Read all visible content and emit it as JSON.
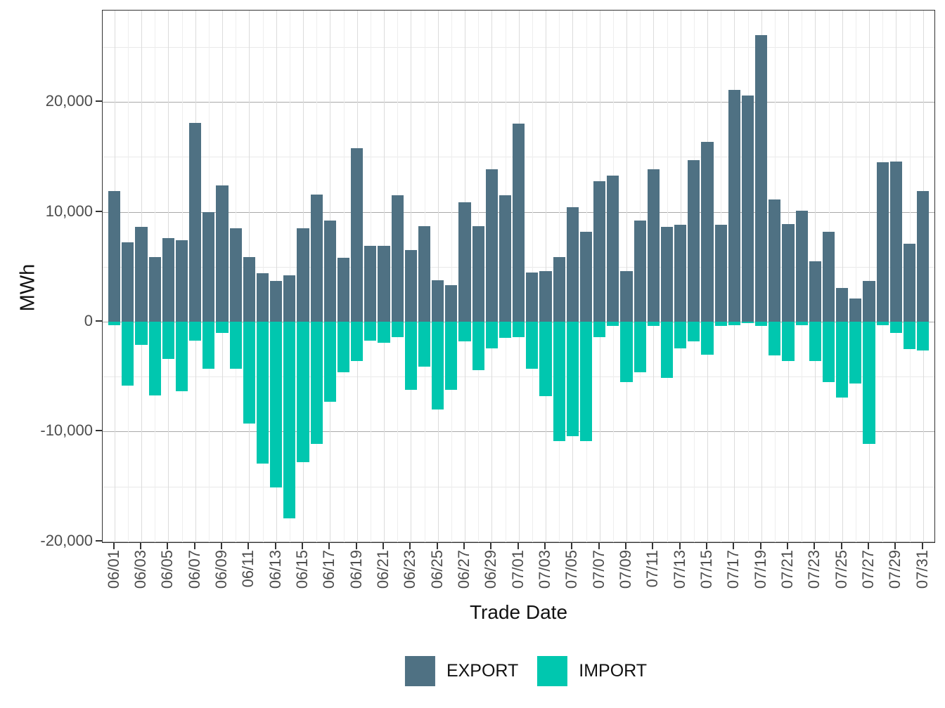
{
  "figure": {
    "y_axis": {
      "title": "MWh",
      "tick_labels": [
        "20,000",
        "10,000",
        "0",
        "-10,000",
        "-20,000"
      ],
      "tick_values": [
        20000,
        10000,
        0,
        -10000,
        -20000
      ],
      "minor_grid_values": [
        25000,
        15000,
        5000,
        -5000,
        -15000
      ]
    },
    "x_axis": {
      "title": "Trade Date",
      "tick_labels": [
        "06/01",
        "06/03",
        "06/05",
        "06/07",
        "06/09",
        "06/11",
        "06/13",
        "06/15",
        "06/17",
        "06/19",
        "06/21",
        "06/23",
        "06/25",
        "06/27",
        "06/29",
        "07/01",
        "07/03",
        "07/05",
        "07/07",
        "07/09",
        "07/11",
        "07/13",
        "07/15",
        "07/17",
        "07/19",
        "07/21",
        "07/23",
        "07/25",
        "07/27",
        "07/29",
        "07/31"
      ]
    },
    "legend": [
      {
        "label": "EXPORT",
        "color": "#4F7183"
      },
      {
        "label": "IMPORT",
        "color": "#00C7AF"
      }
    ]
  },
  "chart_data": {
    "type": "bar",
    "title": "",
    "xlabel": "Trade Date",
    "ylabel": "MWh",
    "ylim": [
      -20200,
      28300
    ],
    "grid": true,
    "legend_position": "bottom",
    "categories": [
      "06/01",
      "06/02",
      "06/03",
      "06/04",
      "06/05",
      "06/06",
      "06/07",
      "06/08",
      "06/09",
      "06/10",
      "06/11",
      "06/12",
      "06/13",
      "06/14",
      "06/15",
      "06/16",
      "06/17",
      "06/18",
      "06/19",
      "06/20",
      "06/21",
      "06/22",
      "06/23",
      "06/24",
      "06/25",
      "06/26",
      "06/27",
      "06/28",
      "06/29",
      "06/30",
      "07/01",
      "07/02",
      "07/03",
      "07/04",
      "07/05",
      "07/06",
      "07/07",
      "07/08",
      "07/09",
      "07/10",
      "07/11",
      "07/12",
      "07/13",
      "07/14",
      "07/15",
      "07/16",
      "07/17",
      "07/18",
      "07/19",
      "07/20",
      "07/21",
      "07/22",
      "07/23",
      "07/24",
      "07/25",
      "07/26",
      "07/27",
      "07/28",
      "07/29",
      "07/30",
      "07/31"
    ],
    "series": [
      {
        "name": "EXPORT",
        "color": "#4F7183",
        "values": [
          11900,
          7200,
          8600,
          5900,
          7600,
          7400,
          18100,
          10000,
          12400,
          8500,
          5900,
          4400,
          3700,
          4200,
          8500,
          11600,
          9200,
          5800,
          15800,
          6900,
          6900,
          11500,
          6500,
          8700,
          3800,
          3300,
          10900,
          8700,
          13900,
          11500,
          18000,
          4500,
          4600,
          5900,
          10400,
          8200,
          12800,
          13300,
          4600,
          9200,
          13900,
          8600,
          8800,
          14700,
          16400,
          8800,
          21100,
          20600,
          26100,
          11100,
          8900,
          10100,
          5500,
          8200,
          3100,
          2100,
          3700,
          14500,
          14600,
          7100,
          11900
        ]
      },
      {
        "name": "IMPORT",
        "color": "#00C7AF",
        "values": [
          -300,
          -5800,
          -2100,
          -6700,
          -3400,
          -6300,
          -1700,
          -4300,
          -1000,
          -4300,
          -9300,
          -12900,
          -15100,
          -17900,
          -12800,
          -11100,
          -7300,
          -4600,
          -3600,
          -1700,
          -1900,
          -1400,
          -6200,
          -4100,
          -8000,
          -6200,
          -1800,
          -4400,
          -2400,
          -1500,
          -1400,
          -4300,
          -6800,
          -10900,
          -10400,
          -10900,
          -1400,
          -400,
          -5500,
          -4600,
          -400,
          -5100,
          -2400,
          -1800,
          -3000,
          -400,
          -300,
          -150,
          -400,
          -3100,
          -3600,
          -300,
          -3600,
          -5500,
          -6900,
          -5600,
          -11100,
          -300,
          -1000,
          -2500,
          -2600
        ]
      }
    ]
  }
}
